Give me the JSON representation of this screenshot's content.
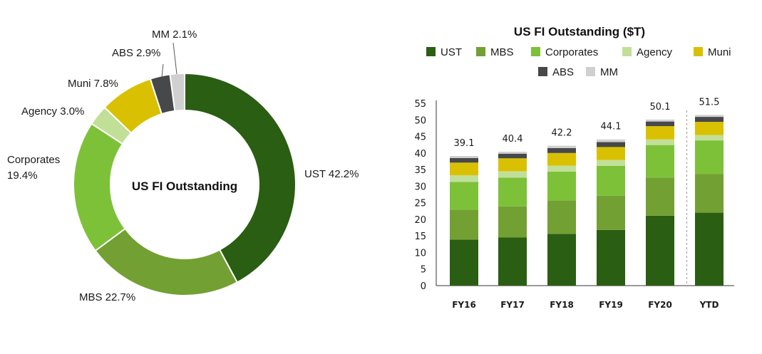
{
  "chart_data": [
    {
      "type": "pie",
      "title": "US FI Outstanding",
      "slices": [
        {
          "name": "UST",
          "label": "UST 42.2%",
          "value": 42.2,
          "color": "#2a5e12"
        },
        {
          "name": "MBS",
          "label": "MBS 22.7%",
          "value": 22.7,
          "color": "#72a032"
        },
        {
          "name": "Corporates",
          "label_lines": [
            "Corporates",
            "19.4%"
          ],
          "value": 19.4,
          "color": "#7dc139"
        },
        {
          "name": "Agency",
          "label": "Agency 3.0%",
          "value": 3.0,
          "color": "#c2df97"
        },
        {
          "name": "Muni",
          "label": "Muni 7.8%",
          "value": 7.8,
          "color": "#d9c102"
        },
        {
          "name": "ABS",
          "label": "ABS 2.9%",
          "value": 2.9,
          "color": "#47484a"
        },
        {
          "name": "MM",
          "label": "MM 2.1%",
          "value": 2.1,
          "color": "#d0d0d0"
        }
      ]
    },
    {
      "type": "bar",
      "stacked": true,
      "title": "US FI Outstanding ($T)",
      "categories": [
        "FY16",
        "FY17",
        "FY18",
        "FY19",
        "FY20",
        "YTD"
      ],
      "totals": [
        "39.1",
        "40.4",
        "42.2",
        "44.1",
        "50.1",
        "51.5"
      ],
      "ylim": [
        0,
        55
      ],
      "yticks": [
        "0",
        "5",
        "10",
        "15",
        "20",
        "25",
        "30",
        "35",
        "40",
        "45",
        "50",
        "55"
      ],
      "legend_position": "top",
      "series": [
        {
          "name": "UST",
          "color": "#2a5e12",
          "values": [
            13.9,
            14.5,
            15.6,
            16.8,
            21.1,
            22.0
          ]
        },
        {
          "name": "MBS",
          "color": "#72a032",
          "values": [
            9.0,
            9.4,
            10.1,
            10.3,
            11.5,
            11.7
          ]
        },
        {
          "name": "Corporates",
          "color": "#7dc139",
          "values": [
            8.4,
            8.7,
            8.7,
            9.0,
            9.8,
            10.1
          ]
        },
        {
          "name": "Agency",
          "color": "#c2df97",
          "values": [
            2.0,
            1.9,
            1.8,
            1.8,
            1.7,
            1.6
          ]
        },
        {
          "name": "Muni",
          "color": "#d9c102",
          "values": [
            3.8,
            3.9,
            3.8,
            3.9,
            4.0,
            4.0
          ]
        },
        {
          "name": "ABS",
          "color": "#47484a",
          "values": [
            1.4,
            1.4,
            1.5,
            1.5,
            1.4,
            1.5
          ]
        },
        {
          "name": "MM",
          "color": "#d0d0d0",
          "values": [
            0.6,
            0.6,
            0.7,
            0.8,
            0.6,
            0.6
          ]
        }
      ]
    }
  ]
}
